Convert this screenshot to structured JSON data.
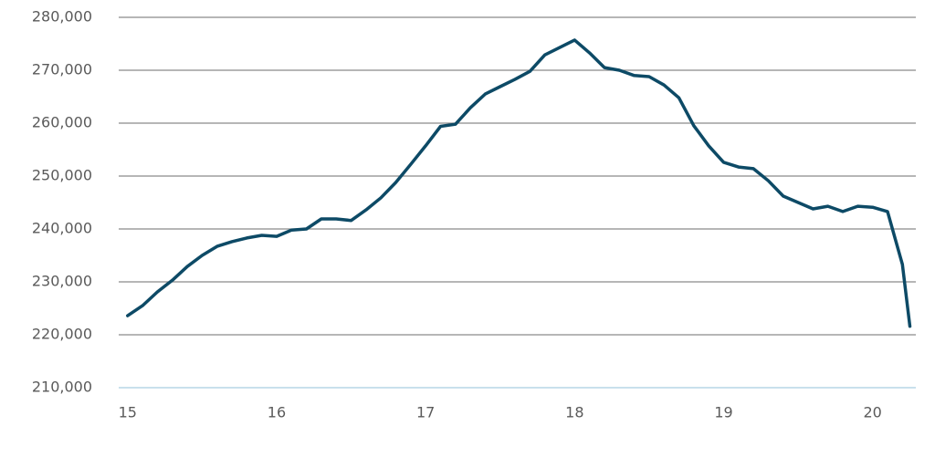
{
  "chart_data": {
    "type": "line",
    "x": [
      15.0,
      15.1,
      15.2,
      15.3,
      15.4,
      15.5,
      15.6,
      15.7,
      15.8,
      15.9,
      16.0,
      16.1,
      16.2,
      16.3,
      16.4,
      16.5,
      16.6,
      16.7,
      16.8,
      16.9,
      17.0,
      17.1,
      17.2,
      17.3,
      17.4,
      17.5,
      17.6,
      17.7,
      17.8,
      17.9,
      18.0,
      18.1,
      18.2,
      18.3,
      18.4,
      18.5,
      18.6,
      18.7,
      18.8,
      18.9,
      19.0,
      19.1,
      19.2,
      19.3,
      19.4,
      19.5,
      19.6,
      19.7,
      19.8,
      19.9,
      20.0,
      20.1,
      20.2,
      20.25
    ],
    "series": [
      {
        "color": "#0d4a66",
        "values": [
          223600,
          225500,
          228100,
          230300,
          232900,
          235000,
          236700,
          237600,
          238300,
          238800,
          238600,
          239800,
          240000,
          241900,
          241900,
          241600,
          243600,
          245900,
          248800,
          252200,
          255700,
          259400,
          259800,
          262900,
          265500,
          266900,
          268300,
          269800,
          272900,
          274300,
          275700,
          273300,
          270500,
          270000,
          269000,
          268800,
          267200,
          264800,
          259500,
          255700,
          252600,
          251700,
          251400,
          249100,
          246200,
          245000,
          243800,
          244300,
          243300,
          244300,
          244100,
          243300,
          233300,
          221600
        ]
      }
    ],
    "xlim": [
      14.94,
      20.29
    ],
    "xticks": [
      15,
      16,
      17,
      18,
      19,
      20
    ],
    "ylim": [
      210000,
      280000
    ],
    "yticks": [
      {
        "value": 210000,
        "label": "210,000"
      },
      {
        "value": 220000,
        "label": "220,000"
      },
      {
        "value": 230000,
        "label": "230,000"
      },
      {
        "value": 240000,
        "label": "240,000"
      },
      {
        "value": 250000,
        "label": "250,000"
      },
      {
        "value": 260000,
        "label": "260,000"
      },
      {
        "value": 270000,
        "label": "270,000"
      },
      {
        "value": 280000,
        "label": "280,000"
      }
    ],
    "grid": true
  }
}
